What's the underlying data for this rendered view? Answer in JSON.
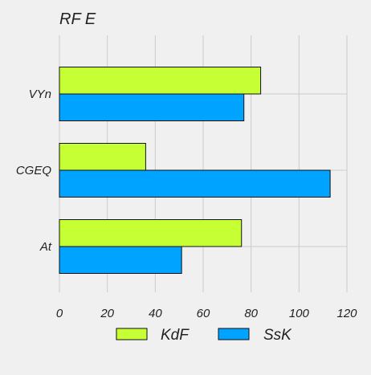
{
  "chart_data": {
    "type": "bar",
    "orientation": "horizontal",
    "title": "RF E",
    "xlabel": "",
    "ylabel": "",
    "categories": [
      "VYn",
      "CGEQ",
      "At"
    ],
    "series": [
      {
        "name": "KdF",
        "color": "#c6ff33",
        "values": [
          84,
          36,
          76
        ]
      },
      {
        "name": "SsK",
        "color": "#00a3ff",
        "values": [
          77,
          113,
          51
        ]
      }
    ],
    "xlim": [
      0,
      120
    ],
    "xticks": [
      0,
      20,
      40,
      60,
      80,
      100,
      120
    ],
    "grid": true,
    "legend_position": "bottom-center"
  }
}
